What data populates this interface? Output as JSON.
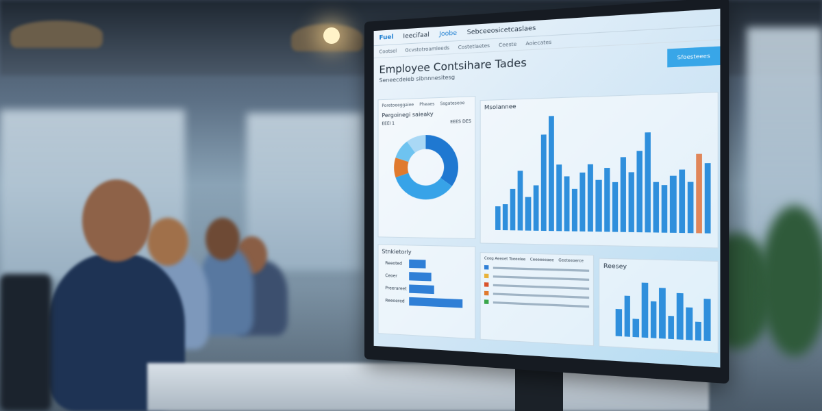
{
  "dashboard": {
    "logo": "Fuel",
    "top_links": [
      "Ieecifaal",
      "Joobe",
      "Sebceeosicetcaslaes"
    ],
    "nav_links": [
      "Cootsel",
      "Gcvstotroamleeds",
      "Costetlaetes",
      "Ceeste",
      "Aoiecates"
    ],
    "title": "Employee Contsihare Tades",
    "subtitle": "Seneecdeieb sibnnnesitesg",
    "cta_label": "Sfoesteees",
    "tabs": [
      "Poretoeeggaiee",
      "Pheaes",
      "Ssgateseoe"
    ],
    "donut_panel": {
      "title": "Pergoinegi saieaky",
      "legend": [
        "EEEI 1",
        "EEES DES"
      ],
      "segments": [
        {
          "color": "#1f78d1",
          "value": 35
        },
        {
          "color": "#37a3e8",
          "value": 35
        },
        {
          "color": "#e07a2e",
          "value": 10
        },
        {
          "color": "#6ec3f0",
          "value": 10
        },
        {
          "color": "#a9d8f5",
          "value": 10
        }
      ]
    },
    "bar_panel": {
      "title": "Msolannee",
      "values": [
        20,
        22,
        35,
        50,
        28,
        38,
        80,
        95,
        55,
        45,
        35,
        48,
        55,
        42,
        52,
        40,
        60,
        48,
        65,
        80,
        40,
        38,
        45,
        50,
        40,
        62,
        55
      ],
      "accent": "#e0865a"
    },
    "hbar_panel": {
      "title": "Stnkietorly",
      "labels": [
        "Reeoted",
        "Ceoer",
        "Preerareet",
        "Reeoered"
      ],
      "values": [
        0.3,
        0.4,
        0.45,
        0.95
      ]
    },
    "table_panel": {
      "headers": [
        "Ceeg Aeeoet Toeeelee",
        "Ceeeeeeaee",
        "Geeteeoerce"
      ],
      "colors": [
        "#2f7fd6",
        "#e8b23a",
        "#d9532c",
        "#e07a2e",
        "#3aa64a"
      ]
    },
    "mini_panel": {
      "title": "Reesey",
      "values": [
        30,
        45,
        20,
        60,
        40,
        55,
        25,
        50,
        35,
        20,
        45
      ]
    }
  }
}
